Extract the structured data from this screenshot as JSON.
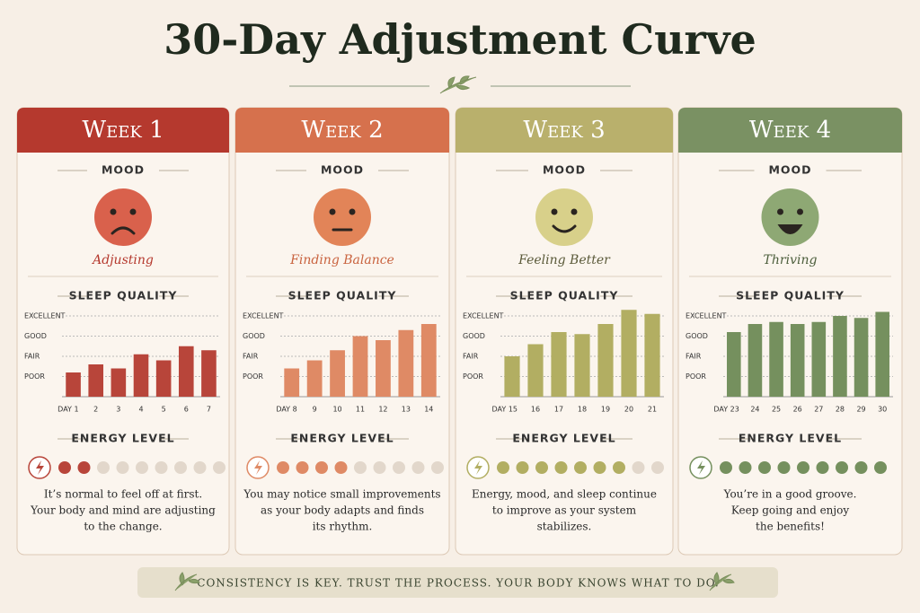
{
  "title": "30-Day Adjustment Curve",
  "headings": {
    "mood": "MOOD",
    "sleep": "SLEEP QUALITY",
    "energy": "ENERGY LEVEL"
  },
  "footer": "CONSISTENCY IS KEY.   TRUST THE PROCESS.   YOUR BODY KNOWS WHAT TO DO.",
  "energy_total": 9,
  "weeks": [
    {
      "name": "Week 1",
      "mood": "Adjusting",
      "energy": 2,
      "text": [
        "It’s normal to feel off at first.",
        "Your body and mind are adjusting",
        "to the change."
      ]
    },
    {
      "name": "Week 2",
      "mood": "Finding Balance",
      "energy": 4,
      "text": [
        "You may notice small improvements",
        "as your body adapts and finds",
        "its rhythm."
      ]
    },
    {
      "name": "Week 3",
      "mood": "Feeling Better",
      "energy": 7,
      "text": [
        "Energy, mood, and sleep continue",
        "to improve as your system",
        "stabilizes."
      ]
    },
    {
      "name": "Week 4",
      "mood": "Thriving",
      "energy": 9,
      "text": [
        "You’re in a good groove.",
        "Keep going and enjoy",
        "the benefits!"
      ]
    }
  ],
  "chart_data": [
    {
      "type": "bar",
      "color": "#b8453a",
      "categories": [
        "DAY 1",
        "2",
        "3",
        "4",
        "5",
        "6",
        "7"
      ],
      "values": [
        1.2,
        1.6,
        1.4,
        2.1,
        1.8,
        2.5,
        2.3
      ],
      "ylim": [
        0,
        4.4
      ],
      "yticks": [
        {
          "value": 1,
          "label": "POOR"
        },
        {
          "value": 2,
          "label": "FAIR"
        },
        {
          "value": 3,
          "label": "GOOD"
        },
        {
          "value": 4,
          "label": "EXCELLENT"
        }
      ],
      "grid": true
    },
    {
      "type": "bar",
      "color": "#df8a65",
      "categories": [
        "DAY 8",
        "9",
        "10",
        "11",
        "12",
        "13",
        "14"
      ],
      "values": [
        1.4,
        1.8,
        2.3,
        3.0,
        2.8,
        3.3,
        3.6
      ],
      "ylim": [
        0,
        4.4
      ],
      "yticks": [
        {
          "value": 1,
          "label": "POOR"
        },
        {
          "value": 2,
          "label": "FAIR"
        },
        {
          "value": 3,
          "label": "GOOD"
        },
        {
          "value": 4,
          "label": "EXCELLENT"
        }
      ],
      "grid": true
    },
    {
      "type": "bar",
      "color": "#b2ae62",
      "categories": [
        "DAY 15",
        "16",
        "17",
        "18",
        "19",
        "20",
        "21"
      ],
      "values": [
        2.0,
        2.6,
        3.2,
        3.1,
        3.6,
        4.3,
        4.1
      ],
      "ylim": [
        0,
        4.4
      ],
      "yticks": [
        {
          "value": 1,
          "label": "POOR"
        },
        {
          "value": 2,
          "label": "FAIR"
        },
        {
          "value": 3,
          "label": "GOOD"
        },
        {
          "value": 4,
          "label": "EXCELLENT"
        }
      ],
      "grid": true
    },
    {
      "type": "bar",
      "color": "#75905e",
      "categories": [
        "DAY 23",
        "24",
        "25",
        "26",
        "27",
        "28",
        "29",
        "30"
      ],
      "values": [
        3.2,
        3.6,
        3.7,
        3.6,
        3.7,
        4.0,
        3.9,
        4.2
      ],
      "ylim": [
        0,
        4.4
      ],
      "yticks": [
        {
          "value": 1,
          "label": "POOR"
        },
        {
          "value": 2,
          "label": "FAIR"
        },
        {
          "value": 3,
          "label": "GOOD"
        },
        {
          "value": 4,
          "label": "EXCELLENT"
        }
      ],
      "grid": true
    }
  ]
}
